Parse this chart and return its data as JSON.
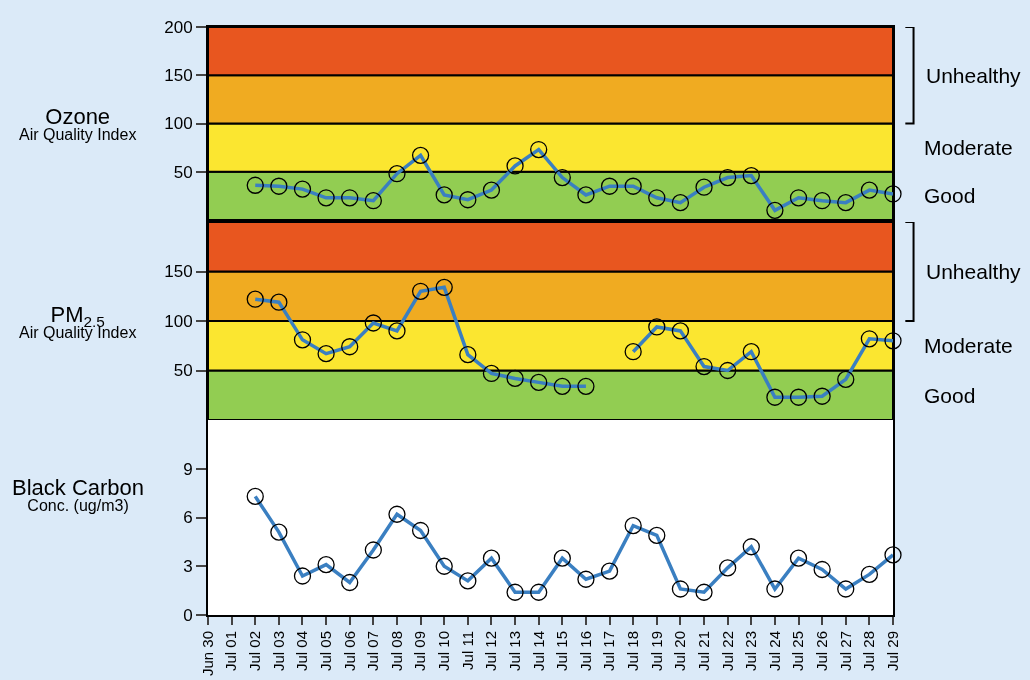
{
  "chart_data": [
    {
      "type": "line",
      "ylabel": "Ozone\nAir Quality Index",
      "tick_labels": "y",
      "marker": "circle",
      "line_style": "solid",
      "categories": [
        null,
        null,
        null,
        null,
        null,
        null,
        null,
        null,
        null,
        null,
        null,
        null,
        null,
        null,
        null,
        null,
        null,
        null,
        null,
        null,
        null,
        null,
        null,
        null,
        null,
        null,
        null,
        null,
        null,
        null
      ],
      "series": [
        {
          "color": "#3a7fc1",
          "values": [
            null,
            null,
            36,
            35,
            32,
            23,
            23,
            20,
            48,
            67,
            26,
            21,
            31,
            56,
            73,
            44,
            26,
            35,
            35,
            23,
            18,
            34,
            44,
            46,
            10,
            23,
            20,
            18,
            31,
            27
          ]
        }
      ],
      "ylim": [
        0,
        200
      ],
      "yticks": [
        50,
        100,
        150,
        200
      ],
      "bands": [
        {
          "axis": "y",
          "from": 0,
          "to": 50,
          "label": "Good",
          "color": "#92cd52"
        },
        {
          "axis": "y",
          "from": 50,
          "to": 100,
          "label": "Moderate",
          "color": "#fbe630"
        },
        {
          "axis": "y",
          "from": 100,
          "to": 150,
          "label": "Unhealthy",
          "color": "#f0ab21"
        },
        {
          "axis": "y",
          "from": 150,
          "to": 200,
          "color": "#e8561f"
        }
      ]
    },
    {
      "type": "line",
      "ylabel": "PM$_{2.5}$\nAir Quality Index",
      "tick_labels": "y",
      "marker": "circle",
      "line_style": "solid",
      "categories": [
        null,
        null,
        null,
        null,
        null,
        null,
        null,
        null,
        null,
        null,
        null,
        null,
        null,
        null,
        null,
        null,
        null,
        null,
        null,
        null,
        null,
        null,
        null,
        null,
        null,
        null,
        null,
        null,
        null,
        null
      ],
      "series": [
        {
          "color": "#3a7fc1",
          "values": [
            null,
            null,
            122,
            119,
            81,
            67,
            74,
            98,
            90,
            130,
            134,
            66,
            47,
            42,
            38,
            34,
            34,
            null,
            69,
            94,
            90,
            54,
            50,
            69,
            23,
            23,
            24,
            41,
            82,
            80
          ]
        }
      ],
      "ylim": [
        0,
        200
      ],
      "yticks": [
        50,
        100,
        150
      ],
      "bands": [
        {
          "axis": "y",
          "from": 0,
          "to": 50,
          "label": "Good",
          "color": "#92cd52"
        },
        {
          "axis": "y",
          "from": 50,
          "to": 100,
          "label": "Moderate",
          "color": "#fbe630"
        },
        {
          "axis": "y",
          "from": 100,
          "to": 150,
          "label": "Unhealthy",
          "color": "#f0ab21"
        },
        {
          "axis": "y",
          "from": 150,
          "to": 200,
          "color": "#e8561f"
        }
      ]
    },
    {
      "type": "line",
      "ylabel": "Black Carbon\nConc. (ug/m3)",
      "marker": "circle",
      "line_style": "solid",
      "categories": [
        "Jun 30",
        "Jul 01",
        "Jul 02",
        "Jul 03",
        "Jul 04",
        "Jul 05",
        "Jul 06",
        "Jul 07",
        "Jul 08",
        "Jul 09",
        "Jul 10",
        "Jul 11",
        "Jul 12",
        "Jul 13",
        "Jul 14",
        "Jul 15",
        "Jul 16",
        "Jul 17",
        "Jul 18",
        "Jul 19",
        "Jul 20",
        "Jul 21",
        "Jul 22",
        "Jul 23",
        "Jul 24",
        "Jul 25",
        "Jul 26",
        "Jul 27",
        "Jul 28",
        "Jul 29"
      ],
      "series": [
        {
          "color": "#3a7fc1",
          "values": [
            null,
            null,
            7.3,
            5.1,
            2.4,
            3.1,
            2.0,
            4.0,
            6.2,
            5.2,
            3.0,
            2.1,
            3.5,
            1.4,
            1.4,
            3.5,
            2.2,
            2.7,
            5.5,
            4.9,
            1.6,
            1.4,
            2.9,
            4.2,
            1.6,
            3.5,
            2.8,
            1.6,
            2.5,
            3.7
          ]
        }
      ],
      "ylim": [
        0,
        12
      ],
      "yticks": [
        0,
        3,
        6,
        9
      ]
    }
  ]
}
